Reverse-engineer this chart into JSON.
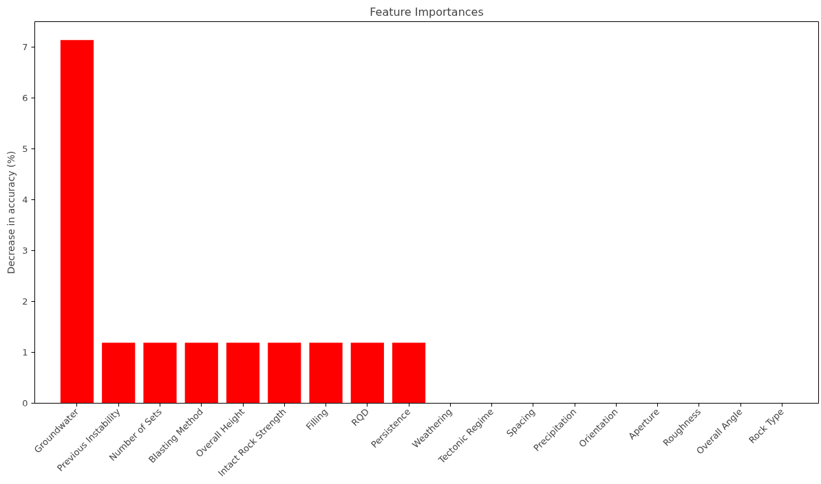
{
  "chart_data": {
    "type": "bar",
    "title": "Feature Importances",
    "ylabel": "Decrease in accuracy (%)",
    "categories": [
      "Groundwater",
      "Previous Instability",
      "Number of Sets",
      "Blasting Method",
      "Overall Height",
      "Intact Rock Strength",
      "Filling",
      "RQD",
      "Persistence",
      "Weathering",
      "Tectonic Regime",
      "Spacing",
      "Precipitation",
      "Orientation",
      "Aperture",
      "Roughness",
      "Overall Angle",
      "Rock Type"
    ],
    "values": [
      7.14,
      1.19,
      1.19,
      1.19,
      1.19,
      1.19,
      1.19,
      1.19,
      1.19,
      0,
      0,
      0,
      0,
      0,
      0,
      0,
      0,
      0
    ],
    "color": "#ff0000",
    "ylim": [
      0,
      7.5
    ],
    "yticks": [
      0,
      1,
      2,
      3,
      4,
      5,
      6,
      7
    ],
    "grid": false
  }
}
